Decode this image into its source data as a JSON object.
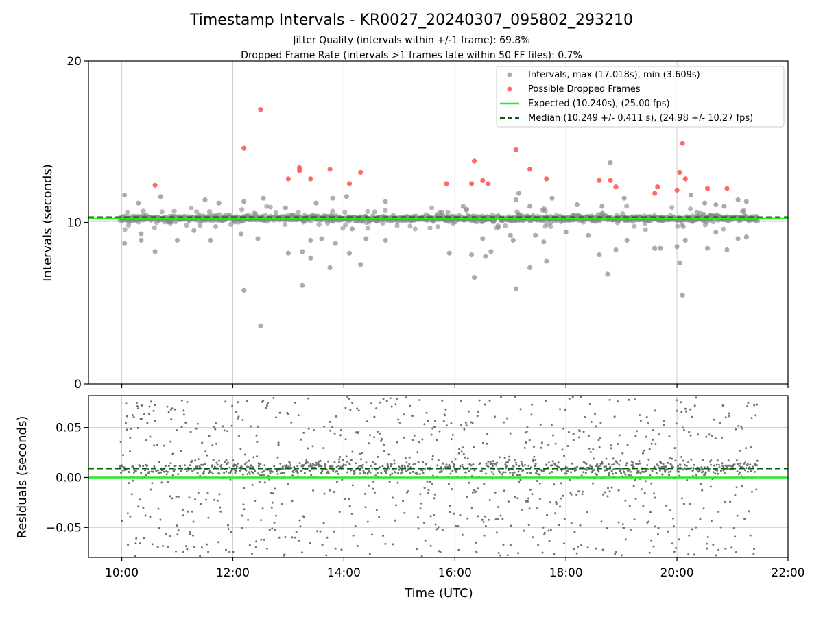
{
  "chart_data": [
    {
      "type": "scatter",
      "title": "Timestamp Intervals - KR0027_20240307_095802_293210",
      "subtitle_lines": [
        "Jitter Quality (intervals within +/-1 frame): 69.8%",
        "Dropped Frame Rate (intervals >1 frames late within 50 FF files): 0.7%"
      ],
      "ylabel": "Intervals (seconds)",
      "xlim": [
        9.4,
        22.0
      ],
      "ylim": [
        0,
        20
      ],
      "yticks": [
        0,
        10,
        20
      ],
      "ytick_labels": [
        "0",
        "10",
        "20"
      ],
      "xticks": [
        10,
        12,
        14,
        16,
        18,
        20,
        22
      ],
      "grid": "vertical",
      "legend_position": "top-right",
      "legend": [
        "Intervals, max (17.018s), min (3.609s)",
        "Possible Dropped Frames",
        "Expected (10.240s), (25.00 fps)",
        "Median (10.249 +/- 0.411 s), (24.98 +/- 10.27 fps)"
      ],
      "expected_value": 10.24,
      "median_value": 10.249,
      "data_time_range": [
        9.97,
        21.45
      ],
      "series": [
        {
          "name": "Possible Dropped Frames",
          "color": "#ff4444",
          "points": [
            [
              10.6,
              12.3
            ],
            [
              12.2,
              14.6
            ],
            [
              12.5,
              17.0
            ],
            [
              13.0,
              12.7
            ],
            [
              13.2,
              13.4
            ],
            [
              13.2,
              13.2
            ],
            [
              13.4,
              12.7
            ],
            [
              13.75,
              13.3
            ],
            [
              14.1,
              12.4
            ],
            [
              14.3,
              13.1
            ],
            [
              15.85,
              12.4
            ],
            [
              16.3,
              12.4
            ],
            [
              16.35,
              13.8
            ],
            [
              16.5,
              12.6
            ],
            [
              16.6,
              12.4
            ],
            [
              17.1,
              14.5
            ],
            [
              17.35,
              13.3
            ],
            [
              17.65,
              12.7
            ],
            [
              18.6,
              12.6
            ],
            [
              18.8,
              12.6
            ],
            [
              18.9,
              12.2
            ],
            [
              19.6,
              11.8
            ],
            [
              19.65,
              12.2
            ],
            [
              20.0,
              12.0
            ],
            [
              20.05,
              13.1
            ],
            [
              20.1,
              14.9
            ],
            [
              20.15,
              12.7
            ],
            [
              20.55,
              12.1
            ],
            [
              20.9,
              12.1
            ]
          ]
        },
        {
          "name": "Intervals, max (17.018s), min (3.609s)",
          "color": "#888888",
          "outliers": [
            [
              10.05,
              8.7
            ],
            [
              10.05,
              11.7
            ],
            [
              10.3,
              11.2
            ],
            [
              10.35,
              9.3
            ],
            [
              10.35,
              8.9
            ],
            [
              10.6,
              8.2
            ],
            [
              10.7,
              11.6
            ],
            [
              11.0,
              8.9
            ],
            [
              11.3,
              9.5
            ],
            [
              11.5,
              11.4
            ],
            [
              11.6,
              8.9
            ],
            [
              11.75,
              11.2
            ],
            [
              12.15,
              9.3
            ],
            [
              12.2,
              11.3
            ],
            [
              12.2,
              5.8
            ],
            [
              12.45,
              9.0
            ],
            [
              12.5,
              3.6
            ],
            [
              12.55,
              11.5
            ],
            [
              12.95,
              10.9
            ],
            [
              13.0,
              8.1
            ],
            [
              13.25,
              8.2
            ],
            [
              13.25,
              6.1
            ],
            [
              13.4,
              8.9
            ],
            [
              13.4,
              7.8
            ],
            [
              13.5,
              11.2
            ],
            [
              13.6,
              9.0
            ],
            [
              13.75,
              7.2
            ],
            [
              13.8,
              11.5
            ],
            [
              13.85,
              8.7
            ],
            [
              14.05,
              11.6
            ],
            [
              14.1,
              8.1
            ],
            [
              14.15,
              9.6
            ],
            [
              14.3,
              7.4
            ],
            [
              14.4,
              9.0
            ],
            [
              14.75,
              11.3
            ],
            [
              14.75,
              8.9
            ],
            [
              15.9,
              8.1
            ],
            [
              16.15,
              11.0
            ],
            [
              16.3,
              8.0
            ],
            [
              16.35,
              6.6
            ],
            [
              16.5,
              9.0
            ],
            [
              16.55,
              7.9
            ],
            [
              16.65,
              8.2
            ],
            [
              17.0,
              9.2
            ],
            [
              17.05,
              8.9
            ],
            [
              17.1,
              5.9
            ],
            [
              17.1,
              11.4
            ],
            [
              17.15,
              11.8
            ],
            [
              17.35,
              7.2
            ],
            [
              17.35,
              11.0
            ],
            [
              17.45,
              9.2
            ],
            [
              17.6,
              8.8
            ],
            [
              17.65,
              7.6
            ],
            [
              17.75,
              11.5
            ],
            [
              18.0,
              9.4
            ],
            [
              18.2,
              11.1
            ],
            [
              18.4,
              9.2
            ],
            [
              18.6,
              8.0
            ],
            [
              18.65,
              11.0
            ],
            [
              18.75,
              6.8
            ],
            [
              18.8,
              13.7
            ],
            [
              18.9,
              8.3
            ],
            [
              19.05,
              11.5
            ],
            [
              19.1,
              8.9
            ],
            [
              19.6,
              8.4
            ],
            [
              19.7,
              8.4
            ],
            [
              20.0,
              8.5
            ],
            [
              20.05,
              7.5
            ],
            [
              20.1,
              5.5
            ],
            [
              20.15,
              8.9
            ],
            [
              20.25,
              11.7
            ],
            [
              20.5,
              11.2
            ],
            [
              20.55,
              8.4
            ],
            [
              20.7,
              11.1
            ],
            [
              20.7,
              9.4
            ],
            [
              20.85,
              11.0
            ],
            [
              20.9,
              8.3
            ],
            [
              21.1,
              9.0
            ],
            [
              21.1,
              11.4
            ],
            [
              21.25,
              9.1
            ],
            [
              21.25,
              11.3
            ]
          ]
        }
      ]
    },
    {
      "type": "scatter",
      "xlabel": "Time (UTC)",
      "ylabel": "Residuals (seconds)",
      "xlim": [
        9.4,
        22.0
      ],
      "ylim": [
        -0.08,
        0.082
      ],
      "yticks": [
        -0.05,
        0.0,
        0.05
      ],
      "ytick_labels": [
        "−0.05",
        "0.00",
        "0.05"
      ],
      "xticks": [
        10,
        12,
        14,
        16,
        18,
        20,
        22
      ],
      "xtick_labels": [
        "10:00",
        "12:00",
        "14:00",
        "16:00",
        "18:00",
        "20:00",
        "22:00"
      ],
      "grid": "both",
      "expected_residual": 0.0,
      "median_residual": 0.009,
      "data_time_range": [
        9.97,
        21.45
      ],
      "series": [
        {
          "name": "Residuals",
          "color": "#707070"
        }
      ]
    }
  ],
  "colors": {
    "points": "#888888",
    "dropped": "#ff4444",
    "expected": "#22ee22",
    "median": "#006400",
    "band": "#f5c842",
    "grid": "#cccccc",
    "residual_points": "#707070"
  }
}
